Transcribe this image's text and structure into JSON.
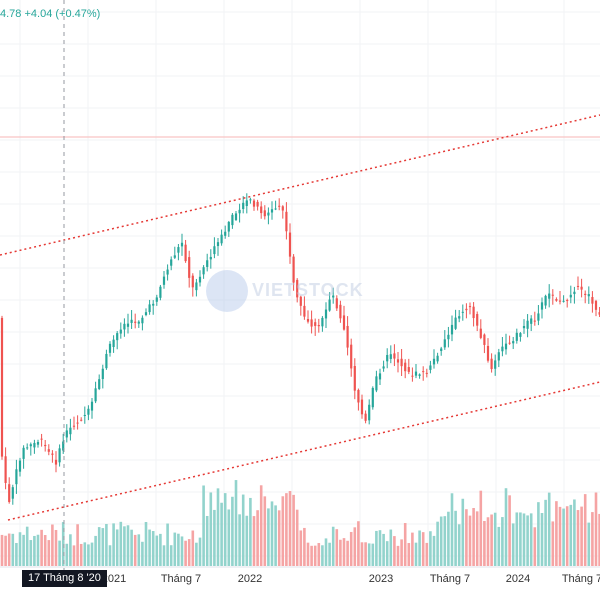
{
  "header": {
    "price_tail": "4.78",
    "change": "+4.04",
    "change_pct": "(+0.47%)"
  },
  "watermark": {
    "text": "VIETSTOCK"
  },
  "crosshair": {
    "date_label": "17 Tháng 8 '20"
  },
  "colors": {
    "up": "#26a69a",
    "down": "#ef5350",
    "up_volume": "#92d3cc",
    "down_volume": "#f5a4a4",
    "trendline": "#e53935",
    "horizontal_line": "#f7b6b6",
    "grid": "#f2f3f5"
  },
  "chart_data": {
    "type": "candlestick",
    "interval": "weekly",
    "x_tick_labels": [
      "2021",
      "Tháng 7",
      "2022",
      "2023",
      "Tháng 7",
      "2024",
      "Tháng 7"
    ],
    "start_label": "17 Tháng 8 '20",
    "y_scale": "hidden",
    "grid": true,
    "overlays": [
      {
        "kind": "upper channel trendline",
        "style": "dotted"
      },
      {
        "kind": "lower channel trendline",
        "style": "dotted"
      },
      {
        "kind": "horizontal line",
        "style": "solid"
      }
    ],
    "volume_pane": true
  }
}
